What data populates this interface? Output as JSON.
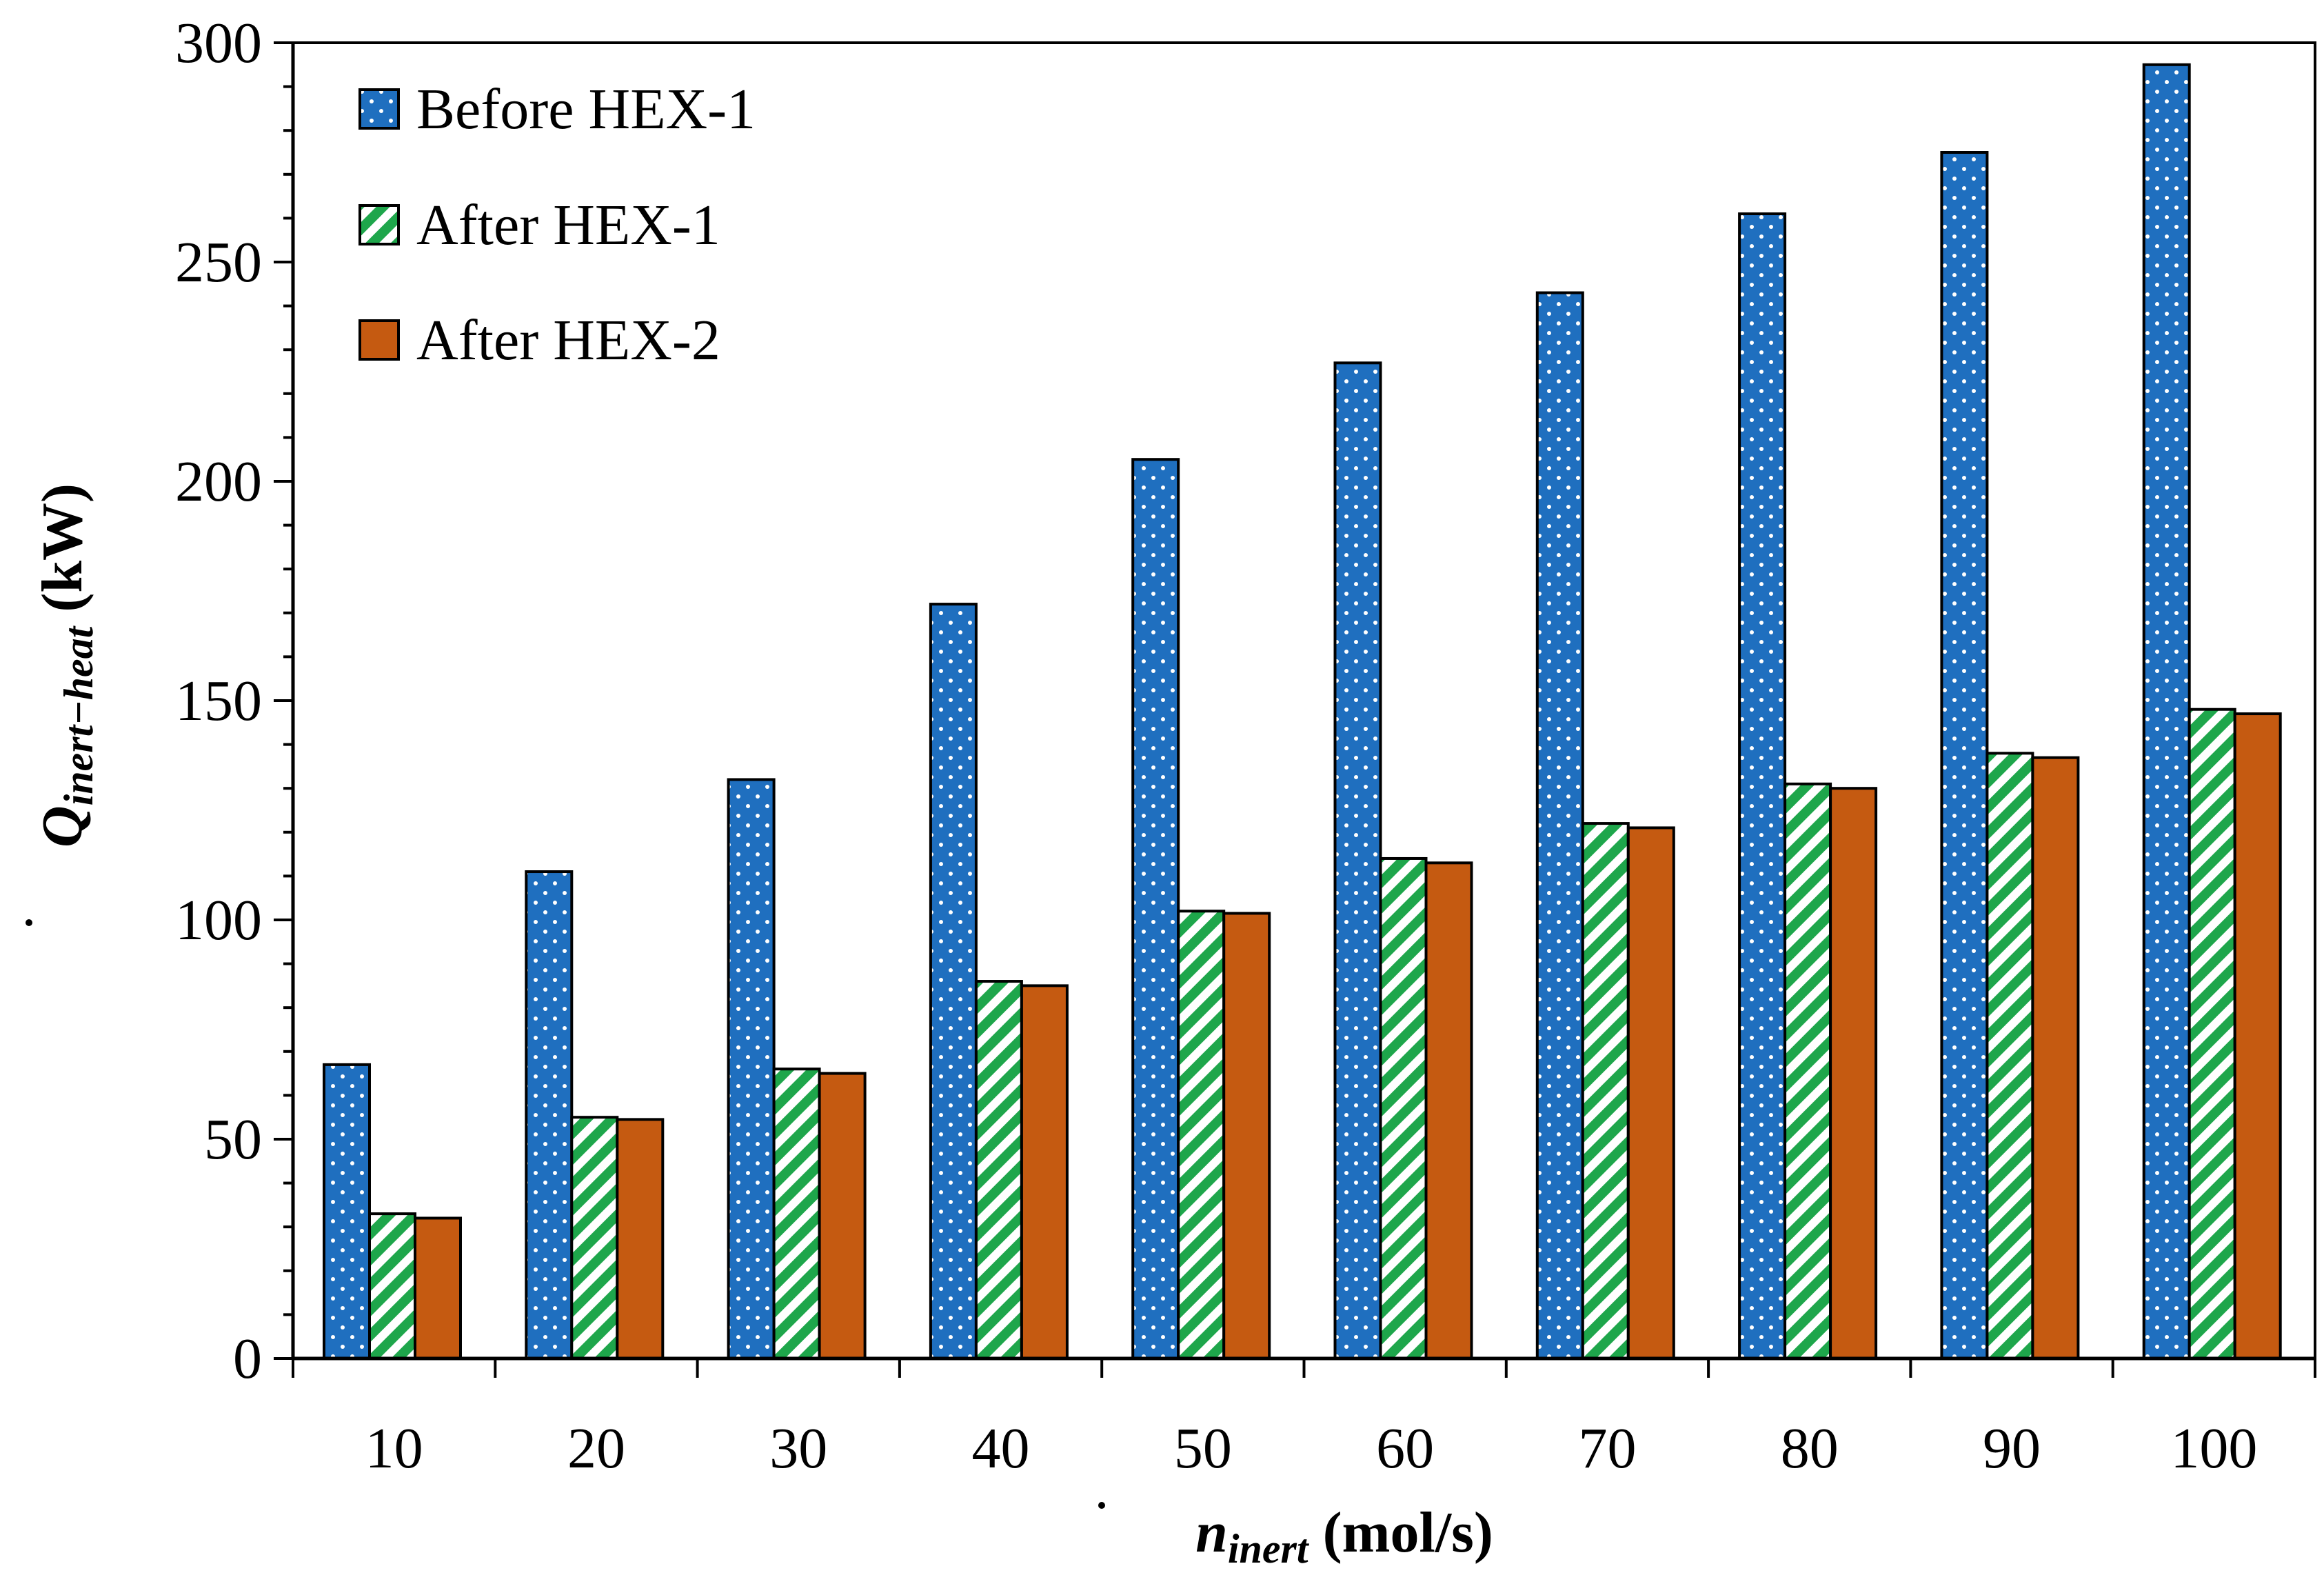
{
  "chart_data": {
    "type": "bar",
    "title": "",
    "xlabel": {
      "main": "n",
      "sub": "inert",
      "units": "(mol/s)"
    },
    "ylabel": {
      "main": "Q",
      "sub": "inert−heat",
      "units": "(kW)"
    },
    "categories": [
      "10",
      "20",
      "30",
      "40",
      "50",
      "60",
      "70",
      "80",
      "90",
      "100"
    ],
    "ylim": [
      0,
      300
    ],
    "yticks": [
      "0",
      "50",
      "100",
      "150",
      "200",
      "250",
      "300"
    ],
    "legend_position": "top-left",
    "series": [
      {
        "name": "Before HEX-1",
        "color": "#1f6fbf",
        "pattern": "dots",
        "values": [
          67,
          111,
          132,
          172,
          205,
          227,
          243,
          261,
          275,
          295
        ]
      },
      {
        "name": "After HEX-1",
        "color": "#1ea64b",
        "pattern": "stripes",
        "values": [
          33,
          55,
          66,
          86,
          102,
          114,
          122,
          131,
          138,
          148
        ]
      },
      {
        "name": "After HEX-2",
        "color": "#c55a11",
        "pattern": "solid",
        "values": [
          32,
          54.5,
          65,
          85,
          101.5,
          113,
          121,
          130,
          137,
          147
        ]
      }
    ]
  }
}
